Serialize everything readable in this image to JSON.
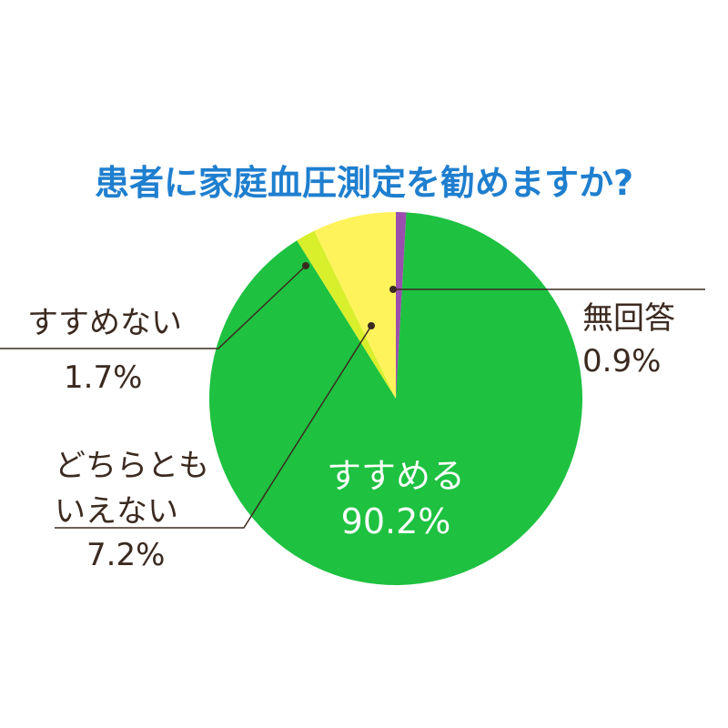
{
  "chart_data": {
    "type": "pie",
    "title": "患者に家庭血圧測定を勧めますか?",
    "categories": [
      "無回答",
      "すすめる",
      "すすめない",
      "どちらとも\nいえない"
    ],
    "values": [
      0.9,
      90.2,
      1.7,
      7.2
    ],
    "value_labels": [
      "0.9%",
      "90.2%",
      "1.7%",
      "7.2%"
    ],
    "colors": [
      "#9a4fae",
      "#1ec140",
      "#d8ef2c",
      "#fff35c"
    ]
  }
}
